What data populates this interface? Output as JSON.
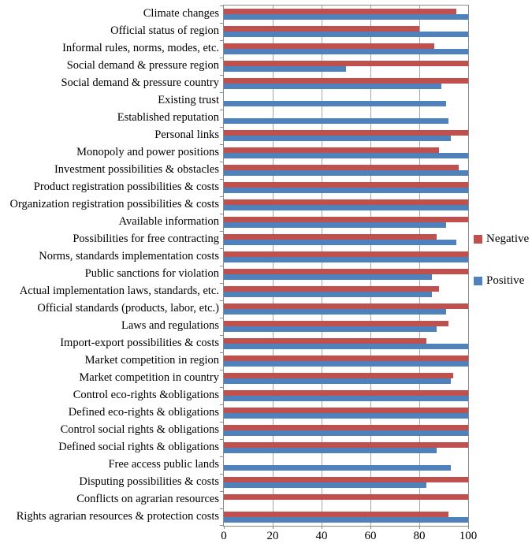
{
  "chart_data": {
    "type": "bar",
    "orientation": "horizontal",
    "title": "",
    "xlabel": "",
    "ylabel": "",
    "xlim": [
      0,
      100
    ],
    "x_ticks": [
      0,
      20,
      40,
      60,
      80,
      100
    ],
    "grid": true,
    "legend_position": "right",
    "categories": [
      "Climate changes",
      "Official status of region",
      "Informal rules, norms, modes, etc.",
      "Social demand & pressure region",
      "Social demand & pressure country",
      "Existing trust",
      "Established reputation",
      "Personal links",
      "Monopoly and power positions",
      "Investment possibilities & obstacles",
      "Product registration possibilities & costs",
      "Organization registration possibilities & costs",
      "Available information",
      "Possibilities for free contracting",
      "Norms, standards implementation costs",
      "Public sanctions for violation",
      "Actual implementation laws, standards, etc.",
      "Official standards (products, labor, etc.)",
      "Laws and regulations",
      "Import-export possibilities & costs",
      "Market competition in region",
      "Market competition in country",
      "Control eco-rights &obligations",
      "Defined eco-rights & obligations",
      "Control social rights & obligations",
      "Defined social rights & obligations",
      "Free access public lands",
      "Disputing possibilities & costs",
      "Conflicts on agrarian resources",
      "Rights agrarian resources & protection costs"
    ],
    "series": [
      {
        "name": "Negative",
        "color": "#C0504D",
        "values": [
          95,
          80,
          86,
          100,
          100,
          null,
          null,
          100,
          88,
          96,
          100,
          100,
          100,
          87,
          100,
          100,
          88,
          100,
          92,
          83,
          100,
          94,
          100,
          100,
          100,
          100,
          null,
          100,
          100,
          92
        ]
      },
      {
        "name": "Positive",
        "color": "#4F81BD",
        "values": [
          100,
          100,
          100,
          50,
          89,
          91,
          92,
          93,
          100,
          100,
          100,
          100,
          91,
          95,
          100,
          85,
          85,
          91,
          87,
          100,
          100,
          93,
          100,
          100,
          100,
          87,
          93,
          83,
          null,
          100
        ]
      }
    ]
  }
}
